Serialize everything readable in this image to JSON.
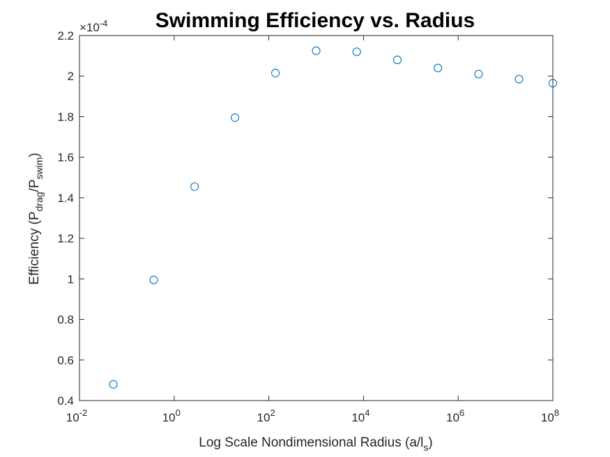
{
  "chart_data": {
    "type": "scatter",
    "title": "Swimming Efficiency vs. Radius",
    "xlabel": {
      "prefix": "Log Scale Nondimensional Radius (a/l",
      "sub": "s",
      "suffix": ")"
    },
    "ylabel": {
      "p1": "Efficiency (P",
      "s1": "drag",
      "p2": "/P",
      "s2": "swim",
      "p3": ")"
    },
    "x_scale": "log",
    "xlim": [
      0.01,
      100000000
    ],
    "ylim": [
      0.4,
      2.2
    ],
    "y_multiplier": {
      "base": "×10",
      "exp": "-4"
    },
    "x_ticks": [
      {
        "value": 0.01,
        "base": "10",
        "exp": "-2"
      },
      {
        "value": 1,
        "base": "10",
        "exp": "0"
      },
      {
        "value": 100,
        "base": "10",
        "exp": "2"
      },
      {
        "value": 10000,
        "base": "10",
        "exp": "4"
      },
      {
        "value": 1000000,
        "base": "10",
        "exp": "6"
      },
      {
        "value": 100000000,
        "base": "10",
        "exp": "8"
      }
    ],
    "y_ticks": [
      {
        "value": 0.4,
        "label": "0.4"
      },
      {
        "value": 0.6,
        "label": "0.6"
      },
      {
        "value": 0.8,
        "label": "0.8"
      },
      {
        "value": 1.0,
        "label": "1"
      },
      {
        "value": 1.2,
        "label": "1.2"
      },
      {
        "value": 1.4,
        "label": "1.4"
      },
      {
        "value": 1.6,
        "label": "1.6"
      },
      {
        "value": 1.8,
        "label": "1.8"
      },
      {
        "value": 2.0,
        "label": "2"
      },
      {
        "value": 2.2,
        "label": "2.2"
      }
    ],
    "grid": false,
    "marker": "open-circle",
    "marker_color": "#0072BD",
    "axis_color": "#262626",
    "series": [
      {
        "x": [
          0.052,
          0.37,
          2.7,
          19.3,
          138,
          1000,
          7200,
          52000,
          373000,
          2700000,
          19300000,
          100000000
        ],
        "y": [
          0.48,
          0.995,
          1.455,
          1.795,
          2.015,
          2.125,
          2.12,
          2.08,
          2.04,
          2.01,
          1.985,
          1.965
        ]
      }
    ]
  }
}
